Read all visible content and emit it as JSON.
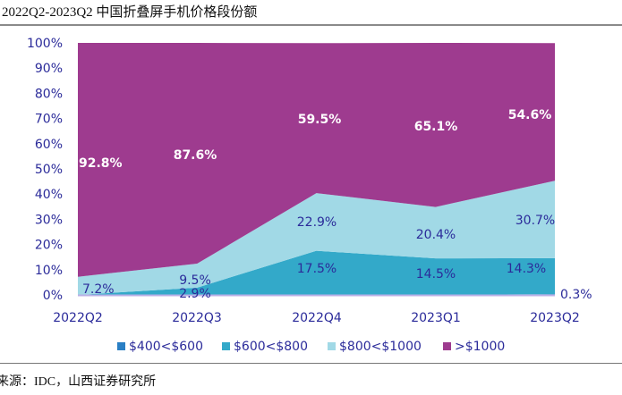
{
  "title": "2022Q2-2023Q2 中国折叠屏手机价格段份额",
  "source": "来源：IDC，山西证券研究所",
  "chart_data": {
    "type": "area",
    "stacked": true,
    "title": "2022Q2-2023Q2 中国折叠屏手机价格段份额",
    "xlabel": "",
    "ylabel": "",
    "categories": [
      "2022Q2",
      "2022Q3",
      "2022Q4",
      "2023Q1",
      "2023Q2"
    ],
    "ylim": [
      0,
      100
    ],
    "y_ticks": [
      "0%",
      "10%",
      "20%",
      "30%",
      "40%",
      "50%",
      "60%",
      "70%",
      "80%",
      "90%",
      "100%"
    ],
    "legend_position": "bottom",
    "series": [
      {
        "name": "$400<$600",
        "color": "#2a7fc4",
        "values": [
          0,
          0,
          0,
          0,
          0.3
        ],
        "labels": [
          "",
          "",
          "",
          "",
          "0.3%"
        ]
      },
      {
        "name": "$600<$800",
        "color": "#33a9c9",
        "values": [
          0,
          2.9,
          17.5,
          14.5,
          14.3
        ],
        "labels": [
          "",
          "2.9%",
          "17.5%",
          "14.5%",
          "14.3%"
        ]
      },
      {
        "name": "$800<$1000",
        "color": "#a1d9e6",
        "values": [
          7.2,
          9.5,
          22.9,
          20.4,
          30.7
        ],
        "labels": [
          "7.2%",
          "9.5%",
          "22.9%",
          "20.4%",
          "30.7%"
        ]
      },
      {
        "name": ">$1000",
        "color": "#9e3b8f",
        "values": [
          92.8,
          87.6,
          59.5,
          65.1,
          54.6
        ],
        "labels": [
          "92.8%",
          "87.6%",
          "59.5%",
          "65.1%",
          "54.6%"
        ]
      }
    ],
    "label_color_dark": "#2b2b9a",
    "label_color_light": "#ffffff",
    "axis_text_color": "#2b2b9a"
  }
}
